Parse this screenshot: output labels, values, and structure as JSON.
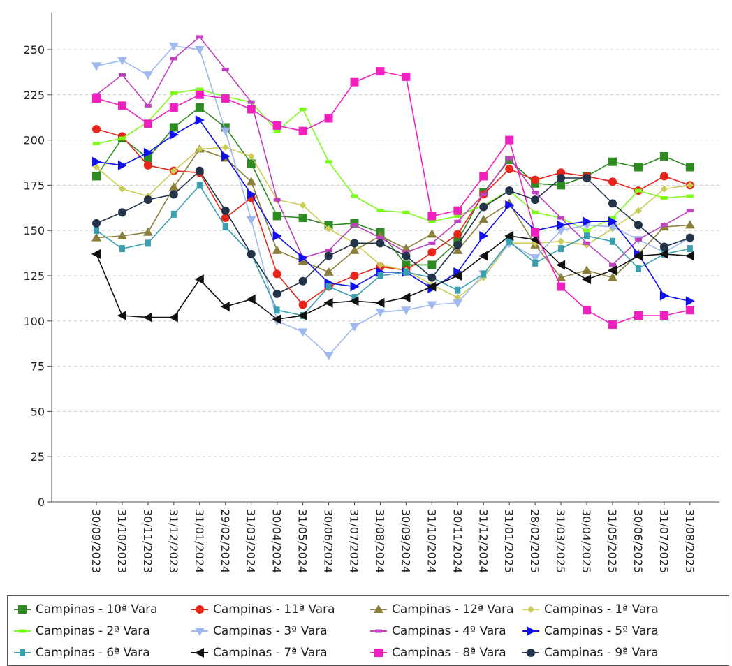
{
  "chart_data": {
    "type": "line",
    "title": "",
    "xlabel": "",
    "ylabel": "",
    "ylim": [
      0,
      265
    ],
    "yticks": [
      0,
      25,
      50,
      75,
      100,
      125,
      150,
      175,
      200,
      225,
      250
    ],
    "grid": "horizontal dashed",
    "legend_position": "bottom",
    "categories": [
      "30/09/2023",
      "31/10/2023",
      "30/11/2023",
      "31/12/2023",
      "31/01/2024",
      "29/02/2024",
      "31/03/2024",
      "30/04/2024",
      "31/05/2024",
      "30/06/2024",
      "31/07/2024",
      "31/08/2024",
      "30/09/2024",
      "31/10/2024",
      "30/11/2024",
      "31/12/2024",
      "31/01/2025",
      "28/02/2025",
      "31/03/2025",
      "30/04/2025",
      "31/05/2025",
      "30/06/2025",
      "31/07/2025",
      "31/08/2025"
    ],
    "series": [
      {
        "name": "Campinas - 10ª Vara",
        "color": "#2e8b22",
        "marker": "square",
        "values": [
          180,
          201,
          190,
          207,
          218,
          207,
          187,
          158,
          157,
          153,
          154,
          149,
          131,
          131,
          144,
          171,
          189,
          176,
          175,
          180,
          188,
          185,
          191,
          185
        ]
      },
      {
        "name": "Campinas - 11ª Vara",
        "color": "#e8251a",
        "marker": "circle",
        "values": [
          206,
          202,
          186,
          183,
          182,
          157,
          168,
          126,
          109,
          119,
          125,
          130,
          128,
          138,
          148,
          170,
          184,
          178,
          182,
          180,
          177,
          172,
          180,
          175
        ]
      },
      {
        "name": "Campinas - 12ª Vara",
        "color": "#8b7d3a",
        "marker": "triangle-up",
        "values": [
          146,
          147,
          149,
          174,
          195,
          190,
          177,
          139,
          133,
          127,
          139,
          147,
          140,
          148,
          139,
          156,
          165,
          142,
          124,
          128,
          124,
          137,
          152,
          153
        ]
      },
      {
        "name": "Campinas - 1ª Vara",
        "color": "#cccc55",
        "marker": "diamond",
        "values": [
          185,
          173,
          169,
          183,
          195,
          196,
          191,
          167,
          164,
          151,
          143,
          131,
          128,
          120,
          113,
          124,
          143,
          143,
          144,
          142,
          151,
          161,
          173,
          175
        ]
      },
      {
        "name": "Campinas - 2ª Vara",
        "color": "#7cfc1a",
        "marker": "dash",
        "values": [
          198,
          201,
          210,
          226,
          228,
          224,
          221,
          205,
          217,
          188,
          169,
          161,
          160,
          155,
          158,
          164,
          172,
          160,
          157,
          150,
          157,
          172,
          168,
          169
        ]
      },
      {
        "name": "Campinas - 3ª Vara",
        "color": "#a0b8f0",
        "marker": "triangle-down",
        "values": [
          241,
          244,
          236,
          252,
          250,
          205,
          156,
          100,
          94,
          81,
          97,
          105,
          106,
          109,
          110,
          126,
          143,
          135,
          150,
          153,
          152,
          145,
          138,
          146
        ]
      },
      {
        "name": "Campinas - 4ª Vara",
        "color": "#c040c0",
        "marker": "dash",
        "values": [
          225,
          236,
          219,
          245,
          257,
          239,
          221,
          167,
          135,
          139,
          153,
          146,
          138,
          143,
          155,
          170,
          190,
          171,
          157,
          143,
          131,
          145,
          153,
          161
        ]
      },
      {
        "name": "Campinas - 5ª Vara",
        "color": "#1010f0",
        "marker": "triangle-right",
        "values": [
          188,
          186,
          193,
          203,
          211,
          191,
          170,
          147,
          135,
          121,
          119,
          127,
          127,
          118,
          127,
          147,
          164,
          150,
          153,
          155,
          155,
          137,
          114,
          111
        ]
      },
      {
        "name": "Campinas - 6ª Vara",
        "color": "#3aa0b0",
        "marker": "small-square",
        "values": [
          150,
          140,
          143,
          159,
          175,
          152,
          137,
          106,
          103,
          119,
          113,
          125,
          127,
          124,
          117,
          126,
          144,
          132,
          140,
          147,
          144,
          129,
          137,
          140
        ]
      },
      {
        "name": "Campinas - 7ª Vara",
        "color": "#111111",
        "marker": "triangle-left",
        "values": [
          137,
          103,
          102,
          102,
          123,
          108,
          112,
          101,
          103,
          110,
          111,
          110,
          113,
          119,
          125,
          136,
          147,
          145,
          131,
          123,
          128,
          136,
          137,
          136
        ]
      },
      {
        "name": "Campinas - 8ª Vara",
        "color": "#f020c0",
        "marker": "square",
        "values": [
          223,
          219,
          209,
          218,
          225,
          223,
          217,
          208,
          205,
          212,
          232,
          238,
          235,
          158,
          161,
          180,
          200,
          149,
          119,
          106,
          98,
          103,
          103,
          106
        ]
      },
      {
        "name": "Campinas - 9ª Vara",
        "color": "#22334a",
        "marker": "circle",
        "values": [
          154,
          160,
          167,
          170,
          183,
          161,
          137,
          115,
          122,
          136,
          143,
          143,
          136,
          124,
          142,
          163,
          172,
          167,
          179,
          179,
          165,
          153,
          141,
          146
        ]
      }
    ]
  }
}
